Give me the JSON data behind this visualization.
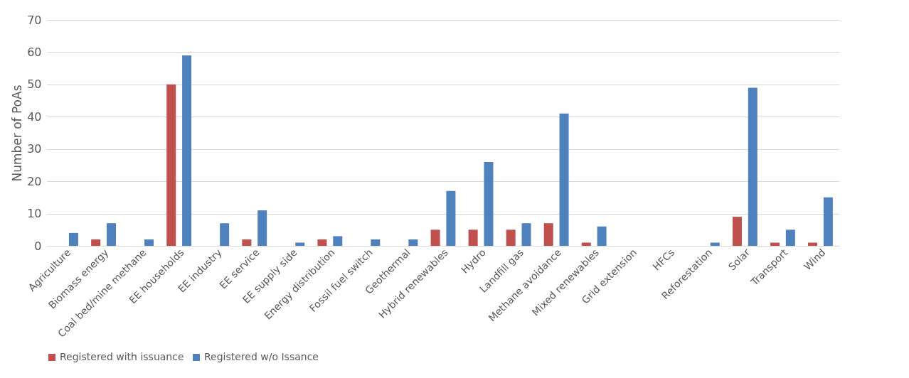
{
  "chart_data": {
    "type": "bar",
    "ylabel": "Number of PoAs",
    "categories": [
      "Agriculture",
      "Biomass energy",
      "Coal bed/mine methane",
      "EE households",
      "EE industry",
      "EE service",
      "EE supply side",
      "Energy distribution",
      "Fossil fuel switch",
      "Geothermal",
      "Hybrid renewables",
      "Hydro",
      "Landfill gas",
      "Methane avoidance",
      "Mixed renewables",
      "Grid extension",
      "HFCs",
      "Reforestation",
      "Solar",
      "Transport",
      "Wind"
    ],
    "series": [
      {
        "name": "Registered with issuance",
        "color": "#c0504d",
        "values": [
          0,
          2,
          0,
          50,
          0,
          2,
          0,
          2,
          0,
          0,
          5,
          5,
          5,
          7,
          1,
          0,
          0,
          0,
          9,
          1,
          1
        ]
      },
      {
        "name": "Registered w/o Issance",
        "color": "#4f81bd",
        "values": [
          4,
          7,
          2,
          59,
          7,
          11,
          1,
          3,
          2,
          2,
          17,
          26,
          7,
          41,
          6,
          0,
          0,
          1,
          49,
          5,
          15
        ]
      }
    ],
    "ylim": [
      0,
      70
    ],
    "yticks": [
      0,
      10,
      20,
      30,
      40,
      50,
      60,
      70
    ],
    "grid": "y",
    "legend": "bottom"
  }
}
